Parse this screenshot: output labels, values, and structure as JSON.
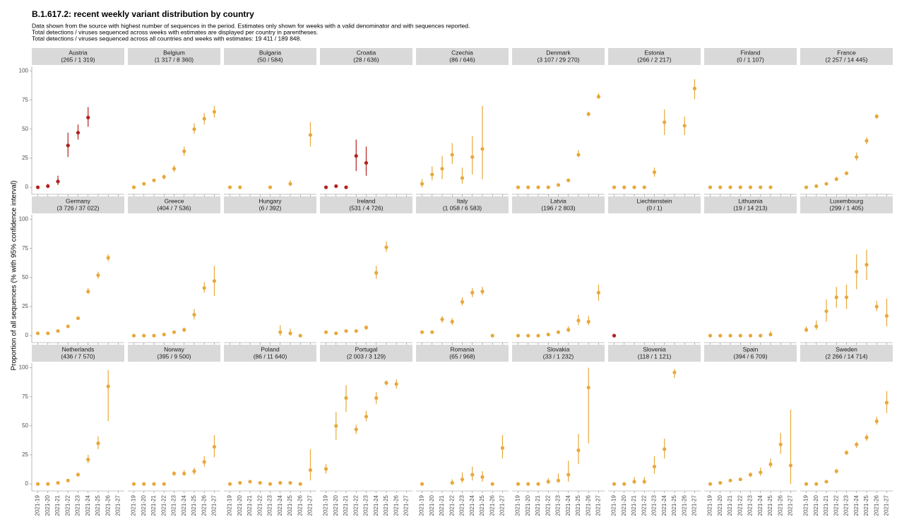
{
  "chart_data": {
    "type": "pointrange",
    "title": "B.1.617.2: recent weekly variant distribution by country",
    "subtitle": [
      "Data shown from the source with highest number of sequences in the period. Estimates only shown for weeks with a valid denominator and with sequences reported.",
      "Total detections / viruses sequenced across weeks with estimates are displayed per country in parentheses.",
      "Total detections / viruses sequenced across all countries and weeks with estimates: 19 411 / 189 848."
    ],
    "ylabel": "Proportion of all sequences (% with 95% confidence interval)",
    "categories": [
      "2021-19",
      "2021-20",
      "2021-21",
      "2021-22",
      "2021-23",
      "2021-24",
      "2021-25",
      "2021-26",
      "2021-27"
    ],
    "ylim": [
      -6,
      104
    ],
    "yticks": [
      0,
      25,
      50,
      75,
      100
    ],
    "panels": [
      {
        "title": "Austria",
        "subtitle": "(265 / 1 319)",
        "color": "#b2221e",
        "values": [
          0,
          1,
          5,
          36,
          47,
          60,
          null,
          null,
          null
        ],
        "lower": [
          null,
          0,
          2,
          26,
          41,
          52,
          null,
          null,
          null
        ],
        "upper": [
          null,
          3,
          10,
          47,
          54,
          69,
          null,
          null,
          null
        ]
      },
      {
        "title": "Belgium",
        "subtitle": "(1 317 / 8 360)",
        "color": "#e8a83a",
        "values": [
          0,
          3,
          6,
          9,
          16,
          31,
          50,
          59,
          65
        ],
        "lower": [
          null,
          null,
          null,
          7,
          13,
          27,
          46,
          54,
          60
        ],
        "upper": [
          null,
          null,
          null,
          11,
          19,
          35,
          55,
          64,
          70
        ]
      },
      {
        "title": "Bulgaria",
        "subtitle": "(50 / 584)",
        "color": "#e8a83a",
        "values": [
          0,
          0,
          null,
          null,
          0,
          null,
          3,
          null,
          45
        ],
        "lower": [
          null,
          null,
          null,
          null,
          null,
          null,
          1,
          null,
          35
        ],
        "upper": [
          null,
          null,
          null,
          null,
          null,
          null,
          6,
          null,
          56
        ]
      },
      {
        "title": "Croatia",
        "subtitle": "(28 / 636)",
        "color": "#b2221e",
        "values": [
          0,
          1,
          0,
          27,
          21,
          null,
          null,
          null,
          null
        ],
        "lower": [
          null,
          null,
          null,
          14,
          10,
          null,
          null,
          null,
          null
        ],
        "upper": [
          null,
          null,
          null,
          41,
          35,
          null,
          null,
          null,
          null
        ]
      },
      {
        "title": "Czechia",
        "subtitle": "(86 / 646)",
        "color": "#e8a83a",
        "values": [
          3,
          11,
          16,
          28,
          8,
          26,
          33,
          null,
          null
        ],
        "lower": [
          0,
          6,
          7,
          20,
          3,
          11,
          7,
          null,
          null
        ],
        "upper": [
          7,
          18,
          27,
          38,
          17,
          44,
          70,
          null,
          null
        ]
      },
      {
        "title": "Denmark",
        "subtitle": "(3 107 / 29 270)",
        "color": "#e8a83a",
        "values": [
          0,
          0,
          0,
          0,
          2,
          6,
          28,
          63,
          78
        ],
        "lower": [
          null,
          null,
          null,
          null,
          1,
          5,
          26,
          61,
          76
        ],
        "upper": [
          null,
          null,
          null,
          null,
          3,
          7,
          32,
          65,
          81
        ]
      },
      {
        "title": "Estonia",
        "subtitle": "(266 / 2 217)",
        "color": "#e8a83a",
        "values": [
          0,
          0,
          0,
          0,
          13,
          56,
          null,
          53,
          85
        ],
        "lower": [
          null,
          null,
          null,
          null,
          9,
          45,
          null,
          45,
          76
        ],
        "upper": [
          null,
          null,
          null,
          null,
          17,
          67,
          null,
          61,
          93
        ]
      },
      {
        "title": "Finland",
        "subtitle": "(0 / 1 107)",
        "color": "#e8a83a",
        "values": [
          0,
          0,
          0,
          0,
          0,
          0,
          0,
          null,
          null
        ],
        "lower": [
          null,
          null,
          null,
          null,
          null,
          null,
          null,
          null,
          null
        ],
        "upper": [
          null,
          null,
          null,
          null,
          null,
          null,
          null,
          null,
          null
        ]
      },
      {
        "title": "France",
        "subtitle": "(2 257 / 14 445)",
        "color": "#e8a83a",
        "values": [
          0,
          1,
          3,
          7,
          12,
          26,
          40,
          61,
          null
        ],
        "lower": [
          null,
          null,
          null,
          6,
          11,
          23,
          37,
          59,
          null
        ],
        "upper": [
          null,
          null,
          null,
          9,
          14,
          30,
          43,
          63,
          null
        ]
      },
      {
        "title": "Germany",
        "subtitle": "(3 726 / 37 022)",
        "color": "#e8a83a",
        "values": [
          2,
          2,
          4,
          8,
          15,
          38,
          52,
          67,
          null
        ],
        "lower": [
          null,
          null,
          null,
          null,
          null,
          36,
          49,
          64,
          null
        ],
        "upper": [
          null,
          null,
          null,
          null,
          null,
          41,
          55,
          70,
          null
        ]
      },
      {
        "title": "Greece",
        "subtitle": "(404 / 7 536)",
        "color": "#e8a83a",
        "values": [
          0,
          0,
          0,
          1,
          3,
          5,
          18,
          41,
          47
        ],
        "lower": [
          null,
          null,
          null,
          null,
          null,
          3,
          14,
          37,
          34
        ],
        "upper": [
          null,
          null,
          null,
          null,
          null,
          7,
          23,
          46,
          60
        ]
      },
      {
        "title": "Hungary",
        "subtitle": "(6 / 392)",
        "color": "#e8a83a",
        "values": [
          null,
          null,
          null,
          null,
          null,
          3,
          2,
          0,
          null
        ],
        "lower": [
          null,
          null,
          null,
          null,
          null,
          0,
          0,
          null,
          null
        ],
        "upper": [
          null,
          null,
          null,
          null,
          null,
          9,
          6,
          null,
          null
        ]
      },
      {
        "title": "Ireland",
        "subtitle": "(531 / 4 726)",
        "color": "#e8a83a",
        "values": [
          3,
          2,
          4,
          4,
          7,
          54,
          76,
          null,
          null
        ],
        "lower": [
          null,
          null,
          null,
          null,
          5,
          49,
          72,
          null,
          null
        ],
        "upper": [
          null,
          null,
          null,
          null,
          9,
          60,
          81,
          null,
          null
        ]
      },
      {
        "title": "Italy",
        "subtitle": "(1 058 / 6 583)",
        "color": "#e8a83a",
        "values": [
          3,
          3,
          14,
          12,
          29,
          37,
          38,
          0,
          null
        ],
        "lower": [
          null,
          null,
          11,
          9,
          26,
          33,
          35,
          null,
          null
        ],
        "upper": [
          null,
          null,
          17,
          15,
          33,
          41,
          42,
          null,
          null
        ]
      },
      {
        "title": "Latvia",
        "subtitle": "(196 / 2 803)",
        "color": "#e8a83a",
        "values": [
          0,
          0,
          0,
          1,
          3,
          5,
          13,
          12,
          37
        ],
        "lower": [
          null,
          null,
          null,
          null,
          null,
          3,
          9,
          9,
          30
        ],
        "upper": [
          null,
          null,
          null,
          null,
          null,
          8,
          18,
          17,
          44
        ]
      },
      {
        "title": "Liechtenstein",
        "subtitle": "(0 / 1)",
        "color": "#b2221e",
        "values": [
          0,
          null,
          null,
          null,
          null,
          null,
          null,
          null,
          null
        ],
        "lower": [
          null,
          null,
          null,
          null,
          null,
          null,
          null,
          null,
          null
        ],
        "upper": [
          null,
          null,
          null,
          null,
          null,
          null,
          null,
          null,
          null
        ]
      },
      {
        "title": "Lithuania",
        "subtitle": "(19 / 14 213)",
        "color": "#e8a83a",
        "values": [
          0,
          0,
          0,
          0,
          0,
          0,
          1,
          null,
          null
        ],
        "lower": [
          null,
          null,
          null,
          null,
          null,
          null,
          0,
          null,
          null
        ],
        "upper": [
          null,
          null,
          null,
          null,
          null,
          null,
          4,
          null,
          null
        ]
      },
      {
        "title": "Luxembourg",
        "subtitle": "(299 / 1 405)",
        "color": "#e8a83a",
        "values": [
          5,
          8,
          21,
          33,
          33,
          55,
          61,
          25,
          17
        ],
        "lower": [
          3,
          5,
          12,
          24,
          23,
          40,
          48,
          21,
          8
        ],
        "upper": [
          8,
          13,
          31,
          42,
          44,
          70,
          74,
          30,
          32
        ]
      },
      {
        "title": "Netherlands",
        "subtitle": "(436 / 7 570)",
        "color": "#e8a83a",
        "values": [
          0,
          0,
          1,
          3,
          8,
          21,
          35,
          84,
          null
        ],
        "lower": [
          null,
          null,
          null,
          null,
          7,
          18,
          30,
          54,
          null
        ],
        "upper": [
          null,
          null,
          null,
          null,
          10,
          25,
          41,
          98,
          null
        ]
      },
      {
        "title": "Norway",
        "subtitle": "(395 / 9 500)",
        "color": "#e8a83a",
        "values": [
          0,
          0,
          0,
          0,
          9,
          9,
          11,
          19,
          32
        ],
        "lower": [
          null,
          null,
          null,
          null,
          7,
          7,
          8,
          15,
          23
        ],
        "upper": [
          null,
          null,
          null,
          null,
          11,
          12,
          14,
          24,
          42
        ]
      },
      {
        "title": "Poland",
        "subtitle": "(86 / 11 640)",
        "color": "#e8a83a",
        "values": [
          0,
          1,
          2,
          1,
          0,
          1,
          1,
          0,
          12
        ],
        "lower": [
          null,
          null,
          null,
          null,
          null,
          null,
          null,
          null,
          3
        ],
        "upper": [
          null,
          null,
          null,
          null,
          null,
          null,
          null,
          null,
          30
        ]
      },
      {
        "title": "Portugal",
        "subtitle": "(2 003 / 3 129)",
        "color": "#e8a83a",
        "values": [
          13,
          50,
          74,
          47,
          58,
          74,
          87,
          86,
          null
        ],
        "lower": [
          9,
          38,
          62,
          43,
          54,
          69,
          85,
          82,
          null
        ],
        "upper": [
          17,
          62,
          85,
          51,
          63,
          79,
          89,
          90,
          null
        ]
      },
      {
        "title": "Romania",
        "subtitle": "(65 / 968)",
        "color": "#e8a83a",
        "values": [
          0,
          null,
          null,
          1,
          4,
          8,
          6,
          0,
          31
        ],
        "lower": [
          null,
          null,
          null,
          0,
          1,
          3,
          2,
          null,
          22
        ],
        "upper": [
          null,
          null,
          null,
          4,
          10,
          15,
          11,
          null,
          42
        ]
      },
      {
        "title": "Slovakia",
        "subtitle": "(33 / 1 232)",
        "color": "#e8a83a",
        "values": [
          0,
          0,
          0,
          2,
          3,
          8,
          29,
          83,
          null
        ],
        "lower": [
          null,
          null,
          null,
          0,
          1,
          2,
          17,
          35,
          null
        ],
        "upper": [
          null,
          null,
          null,
          5,
          9,
          20,
          43,
          100,
          null
        ]
      },
      {
        "title": "Slovenia",
        "subtitle": "(118 / 1 121)",
        "color": "#e8a83a",
        "values": [
          0,
          0,
          2,
          2,
          15,
          30,
          96,
          null,
          null
        ],
        "lower": [
          null,
          null,
          0,
          0,
          9,
          22,
          91,
          null,
          null
        ],
        "upper": [
          null,
          null,
          6,
          6,
          24,
          39,
          99,
          null,
          null
        ]
      },
      {
        "title": "Spain",
        "subtitle": "(394 / 6 709)",
        "color": "#e8a83a",
        "values": [
          0,
          1,
          3,
          4,
          8,
          10,
          17,
          34,
          16
        ],
        "lower": [
          null,
          null,
          null,
          null,
          6,
          7,
          14,
          26,
          0
        ],
        "upper": [
          null,
          null,
          null,
          null,
          10,
          14,
          22,
          44,
          64
        ]
      },
      {
        "title": "Sweden",
        "subtitle": "(2 266 / 14 714)",
        "color": "#e8a83a",
        "values": [
          0,
          0,
          2,
          11,
          27,
          34,
          40,
          54,
          70
        ],
        "lower": [
          null,
          null,
          null,
          9,
          25,
          31,
          37,
          51,
          61
        ],
        "upper": [
          null,
          null,
          null,
          13,
          29,
          36,
          43,
          58,
          80
        ]
      }
    ]
  }
}
